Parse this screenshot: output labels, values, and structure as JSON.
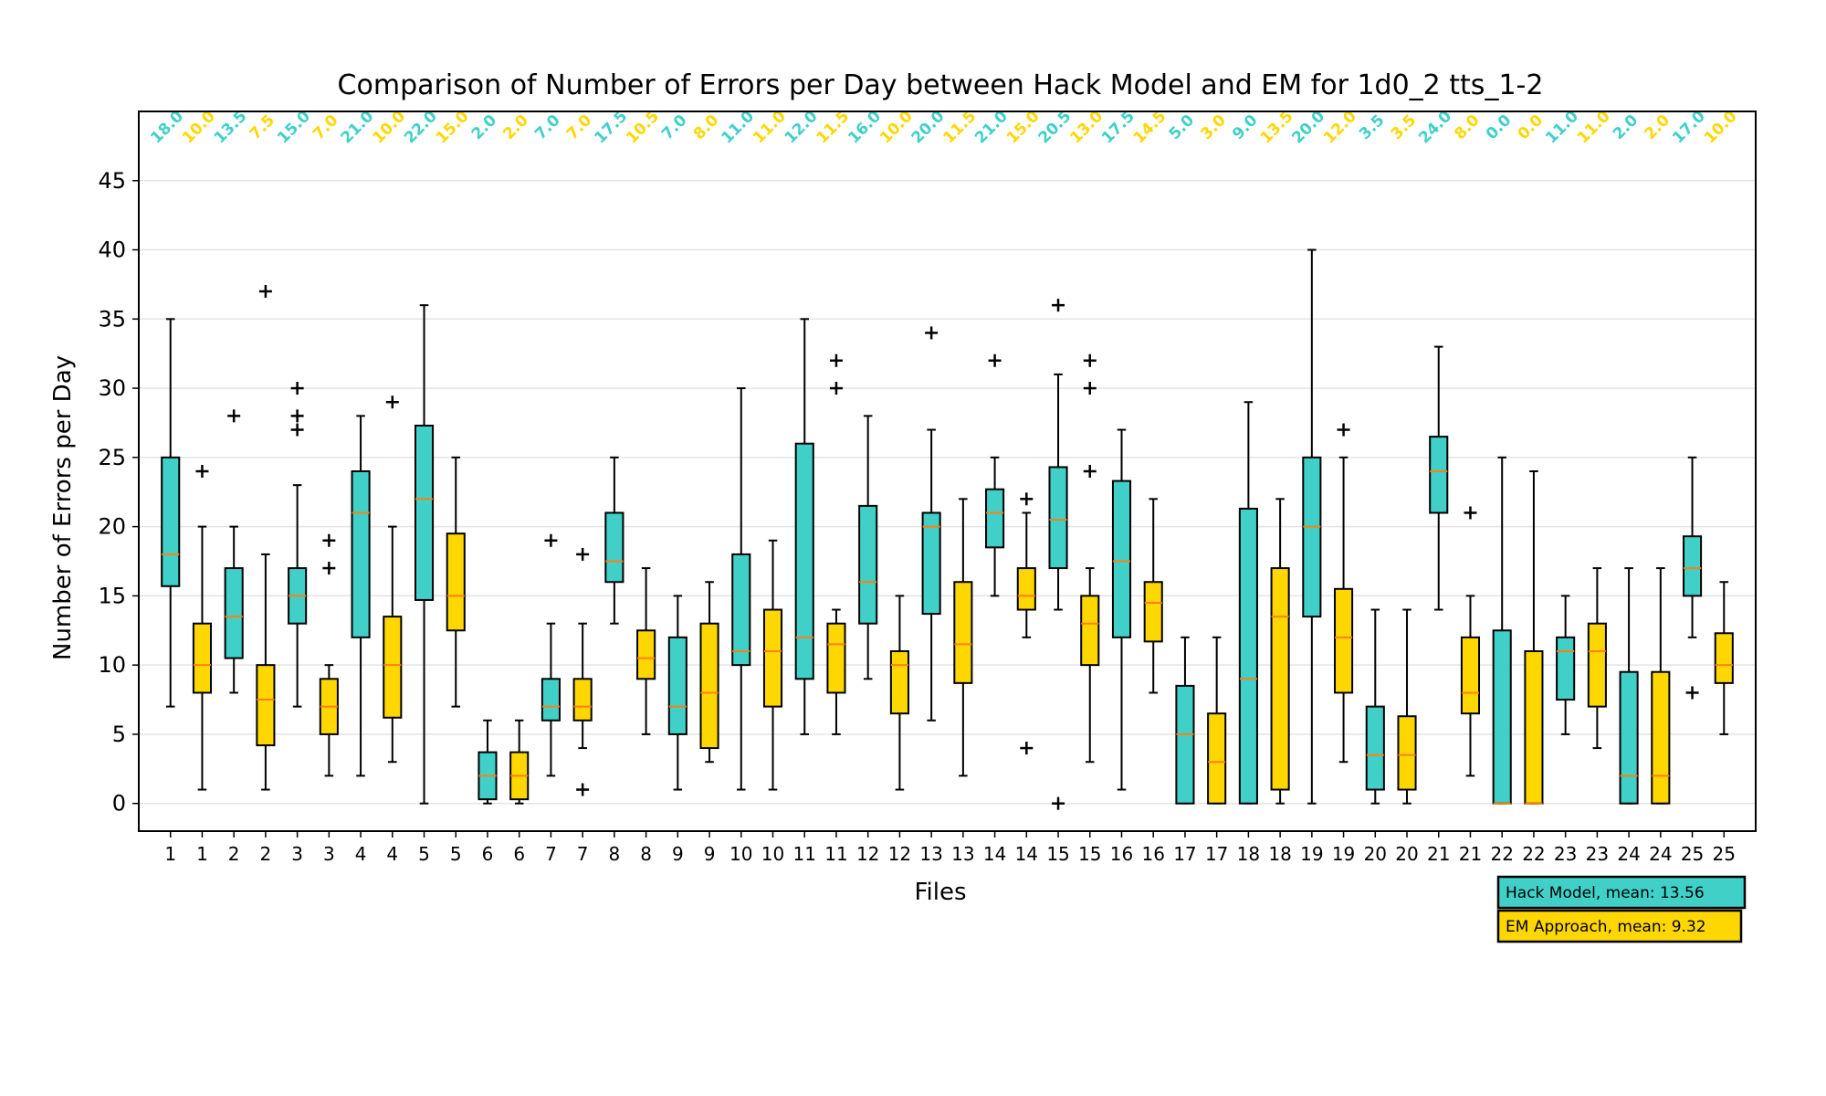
{
  "chart_data": {
    "type": "boxplot",
    "title": "Comparison of Number of Errors per Day between Hack Model and EM for 1d0_2 tts_1-2",
    "xlabel": "Files",
    "ylabel": "Number of Errors per Day",
    "ylim": [
      -2,
      50
    ],
    "yticks": [
      0,
      5,
      10,
      15,
      20,
      25,
      30,
      35,
      40,
      45
    ],
    "grid": "horizontal",
    "legend_position": "below-right",
    "series": [
      {
        "key": "hack",
        "color": "#40d0c8",
        "legend": "Hack Model,  mean: 13.56"
      },
      {
        "key": "em",
        "color": "#ffd700",
        "legend": "EM Approach, mean: 9.32"
      }
    ],
    "boxes": [
      {
        "file": "1",
        "series": "hack",
        "whislo": 7,
        "q1": 15.7,
        "med": 18,
        "q3": 25,
        "whishi": 35,
        "fliers": [],
        "label": "18.0"
      },
      {
        "file": "1",
        "series": "em",
        "whislo": 1,
        "q1": 8,
        "med": 10,
        "q3": 13,
        "whishi": 20,
        "fliers": [
          24
        ],
        "label": "10.0"
      },
      {
        "file": "2",
        "series": "hack",
        "whislo": 8,
        "q1": 10.5,
        "med": 13.5,
        "q3": 17,
        "whishi": 20,
        "fliers": [
          28
        ],
        "label": "13.5"
      },
      {
        "file": "2",
        "series": "em",
        "whislo": 1,
        "q1": 4.2,
        "med": 7.5,
        "q3": 10,
        "whishi": 18,
        "fliers": [
          37
        ],
        "label": "7.5"
      },
      {
        "file": "3",
        "series": "hack",
        "whislo": 7,
        "q1": 13,
        "med": 15,
        "q3": 17,
        "whishi": 23,
        "fliers": [
          27,
          28,
          30
        ],
        "label": "15.0"
      },
      {
        "file": "3",
        "series": "em",
        "whislo": 2,
        "q1": 5,
        "med": 7,
        "q3": 9,
        "whishi": 10,
        "fliers": [
          17,
          19
        ],
        "label": "7.0"
      },
      {
        "file": "4",
        "series": "hack",
        "whislo": 2,
        "q1": 12,
        "med": 21,
        "q3": 24,
        "whishi": 28,
        "fliers": [],
        "label": "21.0"
      },
      {
        "file": "4",
        "series": "em",
        "whislo": 3,
        "q1": 6.2,
        "med": 10,
        "q3": 13.5,
        "whishi": 20,
        "fliers": [
          29
        ],
        "label": "10.0"
      },
      {
        "file": "5",
        "series": "hack",
        "whislo": 0,
        "q1": 14.7,
        "med": 22,
        "q3": 27.3,
        "whishi": 36,
        "fliers": [],
        "label": "22.0"
      },
      {
        "file": "5",
        "series": "em",
        "whislo": 7,
        "q1": 12.5,
        "med": 15,
        "q3": 19.5,
        "whishi": 25,
        "fliers": [],
        "label": "15.0"
      },
      {
        "file": "6",
        "series": "hack",
        "whislo": 0,
        "q1": 0.3,
        "med": 2,
        "q3": 3.7,
        "whishi": 6,
        "fliers": [],
        "label": "2.0"
      },
      {
        "file": "6",
        "series": "em",
        "whislo": 0,
        "q1": 0.3,
        "med": 2,
        "q3": 3.7,
        "whishi": 6,
        "fliers": [],
        "label": "2.0"
      },
      {
        "file": "7",
        "series": "hack",
        "whislo": 2,
        "q1": 6,
        "med": 7,
        "q3": 9,
        "whishi": 13,
        "fliers": [
          19
        ],
        "label": "7.0"
      },
      {
        "file": "7",
        "series": "em",
        "whislo": 4,
        "q1": 6,
        "med": 7,
        "q3": 9,
        "whishi": 13,
        "fliers": [
          1,
          18
        ],
        "label": "7.0"
      },
      {
        "file": "8",
        "series": "hack",
        "whislo": 13,
        "q1": 16,
        "med": 17.5,
        "q3": 21,
        "whishi": 25,
        "fliers": [],
        "label": "17.5"
      },
      {
        "file": "8",
        "series": "em",
        "whislo": 5,
        "q1": 9,
        "med": 10.5,
        "q3": 12.5,
        "whishi": 17,
        "fliers": [],
        "label": "10.5"
      },
      {
        "file": "9",
        "series": "hack",
        "whislo": 1,
        "q1": 5,
        "med": 7,
        "q3": 12,
        "whishi": 15,
        "fliers": [],
        "label": "7.0"
      },
      {
        "file": "9",
        "series": "em",
        "whislo": 3,
        "q1": 4,
        "med": 8,
        "q3": 13,
        "whishi": 16,
        "fliers": [],
        "label": "8.0"
      },
      {
        "file": "10",
        "series": "hack",
        "whislo": 1,
        "q1": 10,
        "med": 11,
        "q3": 18,
        "whishi": 30,
        "fliers": [],
        "label": "11.0"
      },
      {
        "file": "10",
        "series": "em",
        "whislo": 1,
        "q1": 7,
        "med": 11,
        "q3": 14,
        "whishi": 19,
        "fliers": [],
        "label": "11.0"
      },
      {
        "file": "11",
        "series": "hack",
        "whislo": 5,
        "q1": 9,
        "med": 12,
        "q3": 26,
        "whishi": 35,
        "fliers": [],
        "label": "12.0"
      },
      {
        "file": "11",
        "series": "em",
        "whislo": 5,
        "q1": 8,
        "med": 11.5,
        "q3": 13,
        "whishi": 14,
        "fliers": [
          30,
          32
        ],
        "label": "11.5"
      },
      {
        "file": "12",
        "series": "hack",
        "whislo": 9,
        "q1": 13,
        "med": 16,
        "q3": 21.5,
        "whishi": 28,
        "fliers": [],
        "label": "16.0"
      },
      {
        "file": "12",
        "series": "em",
        "whislo": 1,
        "q1": 6.5,
        "med": 10,
        "q3": 11,
        "whishi": 15,
        "fliers": [],
        "label": "10.0"
      },
      {
        "file": "13",
        "series": "hack",
        "whislo": 6,
        "q1": 13.7,
        "med": 20,
        "q3": 21,
        "whishi": 27,
        "fliers": [
          34
        ],
        "label": "20.0"
      },
      {
        "file": "13",
        "series": "em",
        "whislo": 2,
        "q1": 8.7,
        "med": 11.5,
        "q3": 16,
        "whishi": 22,
        "fliers": [],
        "label": "11.5"
      },
      {
        "file": "14",
        "series": "hack",
        "whislo": 15,
        "q1": 18.5,
        "med": 21,
        "q3": 22.7,
        "whishi": 25,
        "fliers": [
          32
        ],
        "label": "21.0"
      },
      {
        "file": "14",
        "series": "em",
        "whislo": 12,
        "q1": 14,
        "med": 15,
        "q3": 17,
        "whishi": 21,
        "fliers": [
          4,
          22
        ],
        "label": "15.0"
      },
      {
        "file": "15",
        "series": "hack",
        "whislo": 14,
        "q1": 17,
        "med": 20.5,
        "q3": 24.3,
        "whishi": 31,
        "fliers": [
          0,
          36
        ],
        "label": "20.5"
      },
      {
        "file": "15",
        "series": "em",
        "whislo": 3,
        "q1": 10,
        "med": 13,
        "q3": 15,
        "whishi": 17,
        "fliers": [
          24,
          30,
          32
        ],
        "label": "13.0"
      },
      {
        "file": "16",
        "series": "hack",
        "whislo": 1,
        "q1": 12,
        "med": 17.5,
        "q3": 23.3,
        "whishi": 27,
        "fliers": [],
        "label": "17.5"
      },
      {
        "file": "16",
        "series": "em",
        "whislo": 8,
        "q1": 11.7,
        "med": 14.5,
        "q3": 16,
        "whishi": 22,
        "fliers": [],
        "label": "14.5"
      },
      {
        "file": "17",
        "series": "hack",
        "whislo": 0,
        "q1": 0,
        "med": 5,
        "q3": 8.5,
        "whishi": 12,
        "fliers": [],
        "label": "5.0"
      },
      {
        "file": "17",
        "series": "em",
        "whislo": 0,
        "q1": 0,
        "med": 3,
        "q3": 6.5,
        "whishi": 12,
        "fliers": [],
        "label": "3.0"
      },
      {
        "file": "18",
        "series": "hack",
        "whislo": 0,
        "q1": 0,
        "med": 9,
        "q3": 21.3,
        "whishi": 29,
        "fliers": [],
        "label": "9.0"
      },
      {
        "file": "18",
        "series": "em",
        "whislo": 0,
        "q1": 1,
        "med": 13.5,
        "q3": 17,
        "whishi": 22,
        "fliers": [],
        "label": "13.5"
      },
      {
        "file": "19",
        "series": "hack",
        "whislo": 0,
        "q1": 13.5,
        "med": 20,
        "q3": 25,
        "whishi": 40,
        "fliers": [],
        "label": "20.0"
      },
      {
        "file": "19",
        "series": "em",
        "whislo": 3,
        "q1": 8,
        "med": 12,
        "q3": 15.5,
        "whishi": 25,
        "fliers": [
          27
        ],
        "label": "12.0"
      },
      {
        "file": "20",
        "series": "hack",
        "whislo": 0,
        "q1": 1,
        "med": 3.5,
        "q3": 7,
        "whishi": 14,
        "fliers": [],
        "label": "3.5"
      },
      {
        "file": "20",
        "series": "em",
        "whislo": 0,
        "q1": 1,
        "med": 3.5,
        "q3": 6.3,
        "whishi": 14,
        "fliers": [],
        "label": "3.5"
      },
      {
        "file": "21",
        "series": "hack",
        "whislo": 14,
        "q1": 21,
        "med": 24,
        "q3": 26.5,
        "whishi": 33,
        "fliers": [],
        "label": "24.0"
      },
      {
        "file": "21",
        "series": "em",
        "whislo": 2,
        "q1": 6.5,
        "med": 8,
        "q3": 12,
        "whishi": 15,
        "fliers": [
          21
        ],
        "label": "8.0"
      },
      {
        "file": "22",
        "series": "hack",
        "whislo": 0,
        "q1": 0,
        "med": 0,
        "q3": 12.5,
        "whishi": 25,
        "fliers": [],
        "label": "0.0"
      },
      {
        "file": "22",
        "series": "em",
        "whislo": 0,
        "q1": 0,
        "med": 0,
        "q3": 11,
        "whishi": 24,
        "fliers": [],
        "label": "0.0"
      },
      {
        "file": "23",
        "series": "hack",
        "whislo": 5,
        "q1": 7.5,
        "med": 11,
        "q3": 12,
        "whishi": 15,
        "fliers": [],
        "label": "11.0"
      },
      {
        "file": "23",
        "series": "em",
        "whislo": 4,
        "q1": 7,
        "med": 11,
        "q3": 13,
        "whishi": 17,
        "fliers": [],
        "label": "11.0"
      },
      {
        "file": "24",
        "series": "hack",
        "whislo": 0,
        "q1": 0,
        "med": 2,
        "q3": 9.5,
        "whishi": 17,
        "fliers": [],
        "label": "2.0"
      },
      {
        "file": "24",
        "series": "em",
        "whislo": 0,
        "q1": 0,
        "med": 2,
        "q3": 9.5,
        "whishi": 17,
        "fliers": [],
        "label": "2.0"
      },
      {
        "file": "25",
        "series": "hack",
        "whislo": 12,
        "q1": 15,
        "med": 17,
        "q3": 19.3,
        "whishi": 25,
        "fliers": [
          8
        ],
        "label": "17.0"
      },
      {
        "file": "25",
        "series": "em",
        "whislo": 5,
        "q1": 8.7,
        "med": 10,
        "q3": 12.3,
        "whishi": 16,
        "fliers": [],
        "label": "10.0"
      }
    ]
  }
}
